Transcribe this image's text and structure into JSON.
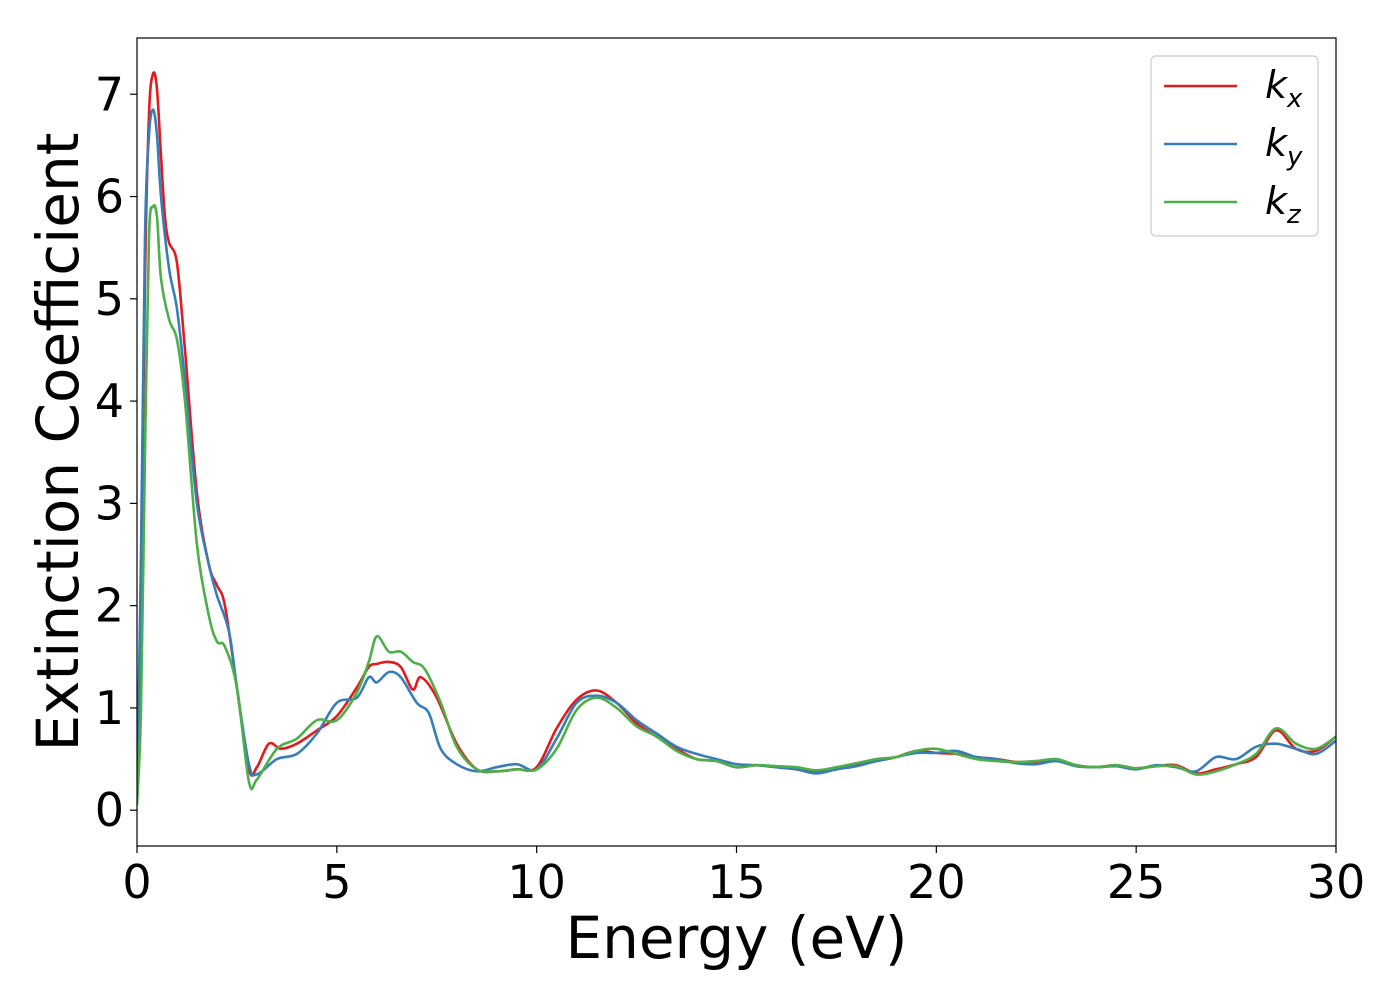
{
  "chart_data": {
    "type": "line",
    "title": "",
    "xlabel": "Energy (eV)",
    "ylabel": "Extinction Coefficient",
    "xlim": [
      0,
      30
    ],
    "ylim": [
      -0.35,
      7.55
    ],
    "xticks": [
      0,
      5,
      10,
      15,
      20,
      25,
      30
    ],
    "yticks": [
      0,
      1,
      2,
      3,
      4,
      5,
      6,
      7
    ],
    "xtick_labels": [
      "0",
      "5",
      "10",
      "15",
      "20",
      "25",
      "30"
    ],
    "ytick_labels": [
      "0",
      "1",
      "2",
      "3",
      "4",
      "5",
      "6",
      "7"
    ],
    "grid": false,
    "legend_position": "top-right",
    "series": [
      {
        "name": "k_x",
        "label_base": "k",
        "label_sub": "x",
        "color": "#e41a1c",
        "x": [
          0.0,
          0.1,
          0.2,
          0.3,
          0.4,
          0.5,
          0.6,
          0.7,
          0.8,
          1.0,
          1.2,
          1.5,
          1.8,
          2.0,
          2.2,
          2.5,
          2.8,
          3.0,
          3.3,
          3.6,
          4.0,
          4.5,
          5.0,
          5.5,
          5.8,
          6.0,
          6.3,
          6.6,
          6.9,
          7.1,
          7.5,
          8.0,
          8.5,
          9.0,
          9.5,
          10.0,
          10.5,
          11.0,
          11.5,
          12.0,
          12.5,
          13.0,
          13.5,
          14.0,
          14.5,
          15.0,
          15.5,
          16.0,
          16.5,
          17.0,
          17.5,
          18.0,
          18.5,
          19.0,
          19.5,
          20.0,
          20.5,
          21.0,
          21.5,
          22.0,
          22.5,
          23.0,
          23.5,
          24.0,
          24.5,
          25.0,
          25.5,
          26.0,
          26.5,
          27.0,
          27.5,
          28.0,
          28.5,
          29.0,
          29.5,
          30.0
        ],
        "y": [
          0.1,
          2.2,
          5.2,
          6.8,
          7.2,
          7.05,
          6.4,
          5.8,
          5.55,
          5.35,
          4.5,
          3.1,
          2.4,
          2.2,
          2.0,
          1.2,
          0.4,
          0.42,
          0.65,
          0.6,
          0.65,
          0.78,
          0.92,
          1.2,
          1.4,
          1.43,
          1.45,
          1.4,
          1.18,
          1.3,
          1.1,
          0.65,
          0.4,
          0.38,
          0.4,
          0.42,
          0.8,
          1.08,
          1.17,
          1.05,
          0.85,
          0.72,
          0.6,
          0.5,
          0.48,
          0.42,
          0.44,
          0.42,
          0.4,
          0.37,
          0.4,
          0.45,
          0.48,
          0.52,
          0.58,
          0.56,
          0.55,
          0.52,
          0.5,
          0.47,
          0.46,
          0.49,
          0.44,
          0.42,
          0.44,
          0.41,
          0.43,
          0.44,
          0.36,
          0.4,
          0.45,
          0.52,
          0.78,
          0.6,
          0.58,
          0.72
        ]
      },
      {
        "name": "k_y",
        "label_base": "k",
        "label_sub": "y",
        "color": "#377eb8",
        "x": [
          0.0,
          0.1,
          0.2,
          0.3,
          0.4,
          0.5,
          0.6,
          0.8,
          1.0,
          1.2,
          1.5,
          1.8,
          2.0,
          2.3,
          2.5,
          2.8,
          3.0,
          3.5,
          4.0,
          4.5,
          5.0,
          5.5,
          5.8,
          6.0,
          6.3,
          6.6,
          7.0,
          7.3,
          7.6,
          8.0,
          8.5,
          9.0,
          9.5,
          10.0,
          10.5,
          11.0,
          11.5,
          12.0,
          12.5,
          13.0,
          13.5,
          14.0,
          14.5,
          15.0,
          15.5,
          16.0,
          16.5,
          17.0,
          17.5,
          18.0,
          18.5,
          19.0,
          19.5,
          20.0,
          20.5,
          21.0,
          21.5,
          22.0,
          22.5,
          23.0,
          23.5,
          24.0,
          24.5,
          25.0,
          25.5,
          26.0,
          26.5,
          27.0,
          27.5,
          28.0,
          28.5,
          29.0,
          29.5,
          30.0
        ],
        "y": [
          0.1,
          2.5,
          5.6,
          6.6,
          6.85,
          6.6,
          6.0,
          5.3,
          4.9,
          4.2,
          3.0,
          2.4,
          2.1,
          1.75,
          1.2,
          0.45,
          0.35,
          0.5,
          0.55,
          0.75,
          1.05,
          1.1,
          1.3,
          1.25,
          1.35,
          1.3,
          1.05,
          0.95,
          0.6,
          0.45,
          0.38,
          0.42,
          0.45,
          0.4,
          0.7,
          1.05,
          1.12,
          1.05,
          0.88,
          0.75,
          0.62,
          0.55,
          0.5,
          0.45,
          0.44,
          0.42,
          0.4,
          0.36,
          0.4,
          0.43,
          0.48,
          0.52,
          0.56,
          0.56,
          0.58,
          0.52,
          0.5,
          0.46,
          0.45,
          0.48,
          0.43,
          0.42,
          0.43,
          0.4,
          0.44,
          0.42,
          0.38,
          0.52,
          0.5,
          0.62,
          0.65,
          0.6,
          0.55,
          0.68
        ]
      },
      {
        "name": "k_z",
        "label_base": "k",
        "label_sub": "z",
        "color": "#4daf4a",
        "x": [
          0.0,
          0.1,
          0.2,
          0.3,
          0.4,
          0.5,
          0.6,
          0.8,
          1.0,
          1.2,
          1.5,
          1.8,
          2.0,
          2.2,
          2.5,
          2.8,
          3.0,
          3.5,
          4.0,
          4.5,
          5.0,
          5.5,
          5.8,
          6.0,
          6.3,
          6.6,
          6.9,
          7.2,
          7.6,
          8.0,
          8.5,
          9.0,
          9.5,
          10.0,
          10.5,
          11.0,
          11.5,
          12.0,
          12.5,
          13.0,
          13.5,
          14.0,
          14.5,
          15.0,
          15.5,
          16.0,
          16.5,
          17.0,
          17.5,
          18.0,
          18.5,
          19.0,
          19.5,
          20.0,
          20.5,
          21.0,
          21.5,
          22.0,
          22.5,
          23.0,
          23.5,
          24.0,
          24.5,
          25.0,
          25.5,
          26.0,
          26.5,
          27.0,
          27.5,
          28.0,
          28.5,
          29.0,
          29.5,
          30.0
        ],
        "y": [
          0.05,
          1.0,
          3.5,
          5.6,
          5.9,
          5.8,
          5.2,
          4.8,
          4.6,
          4.0,
          2.6,
          1.9,
          1.65,
          1.6,
          1.2,
          0.28,
          0.3,
          0.6,
          0.7,
          0.88,
          0.88,
          1.15,
          1.45,
          1.7,
          1.55,
          1.55,
          1.45,
          1.38,
          1.05,
          0.62,
          0.4,
          0.38,
          0.4,
          0.4,
          0.6,
          0.98,
          1.1,
          1.0,
          0.82,
          0.72,
          0.58,
          0.5,
          0.48,
          0.42,
          0.44,
          0.43,
          0.42,
          0.39,
          0.42,
          0.46,
          0.5,
          0.52,
          0.58,
          0.6,
          0.55,
          0.5,
          0.48,
          0.47,
          0.48,
          0.5,
          0.44,
          0.42,
          0.44,
          0.41,
          0.43,
          0.43,
          0.35,
          0.38,
          0.45,
          0.55,
          0.8,
          0.65,
          0.6,
          0.72
        ]
      }
    ]
  }
}
